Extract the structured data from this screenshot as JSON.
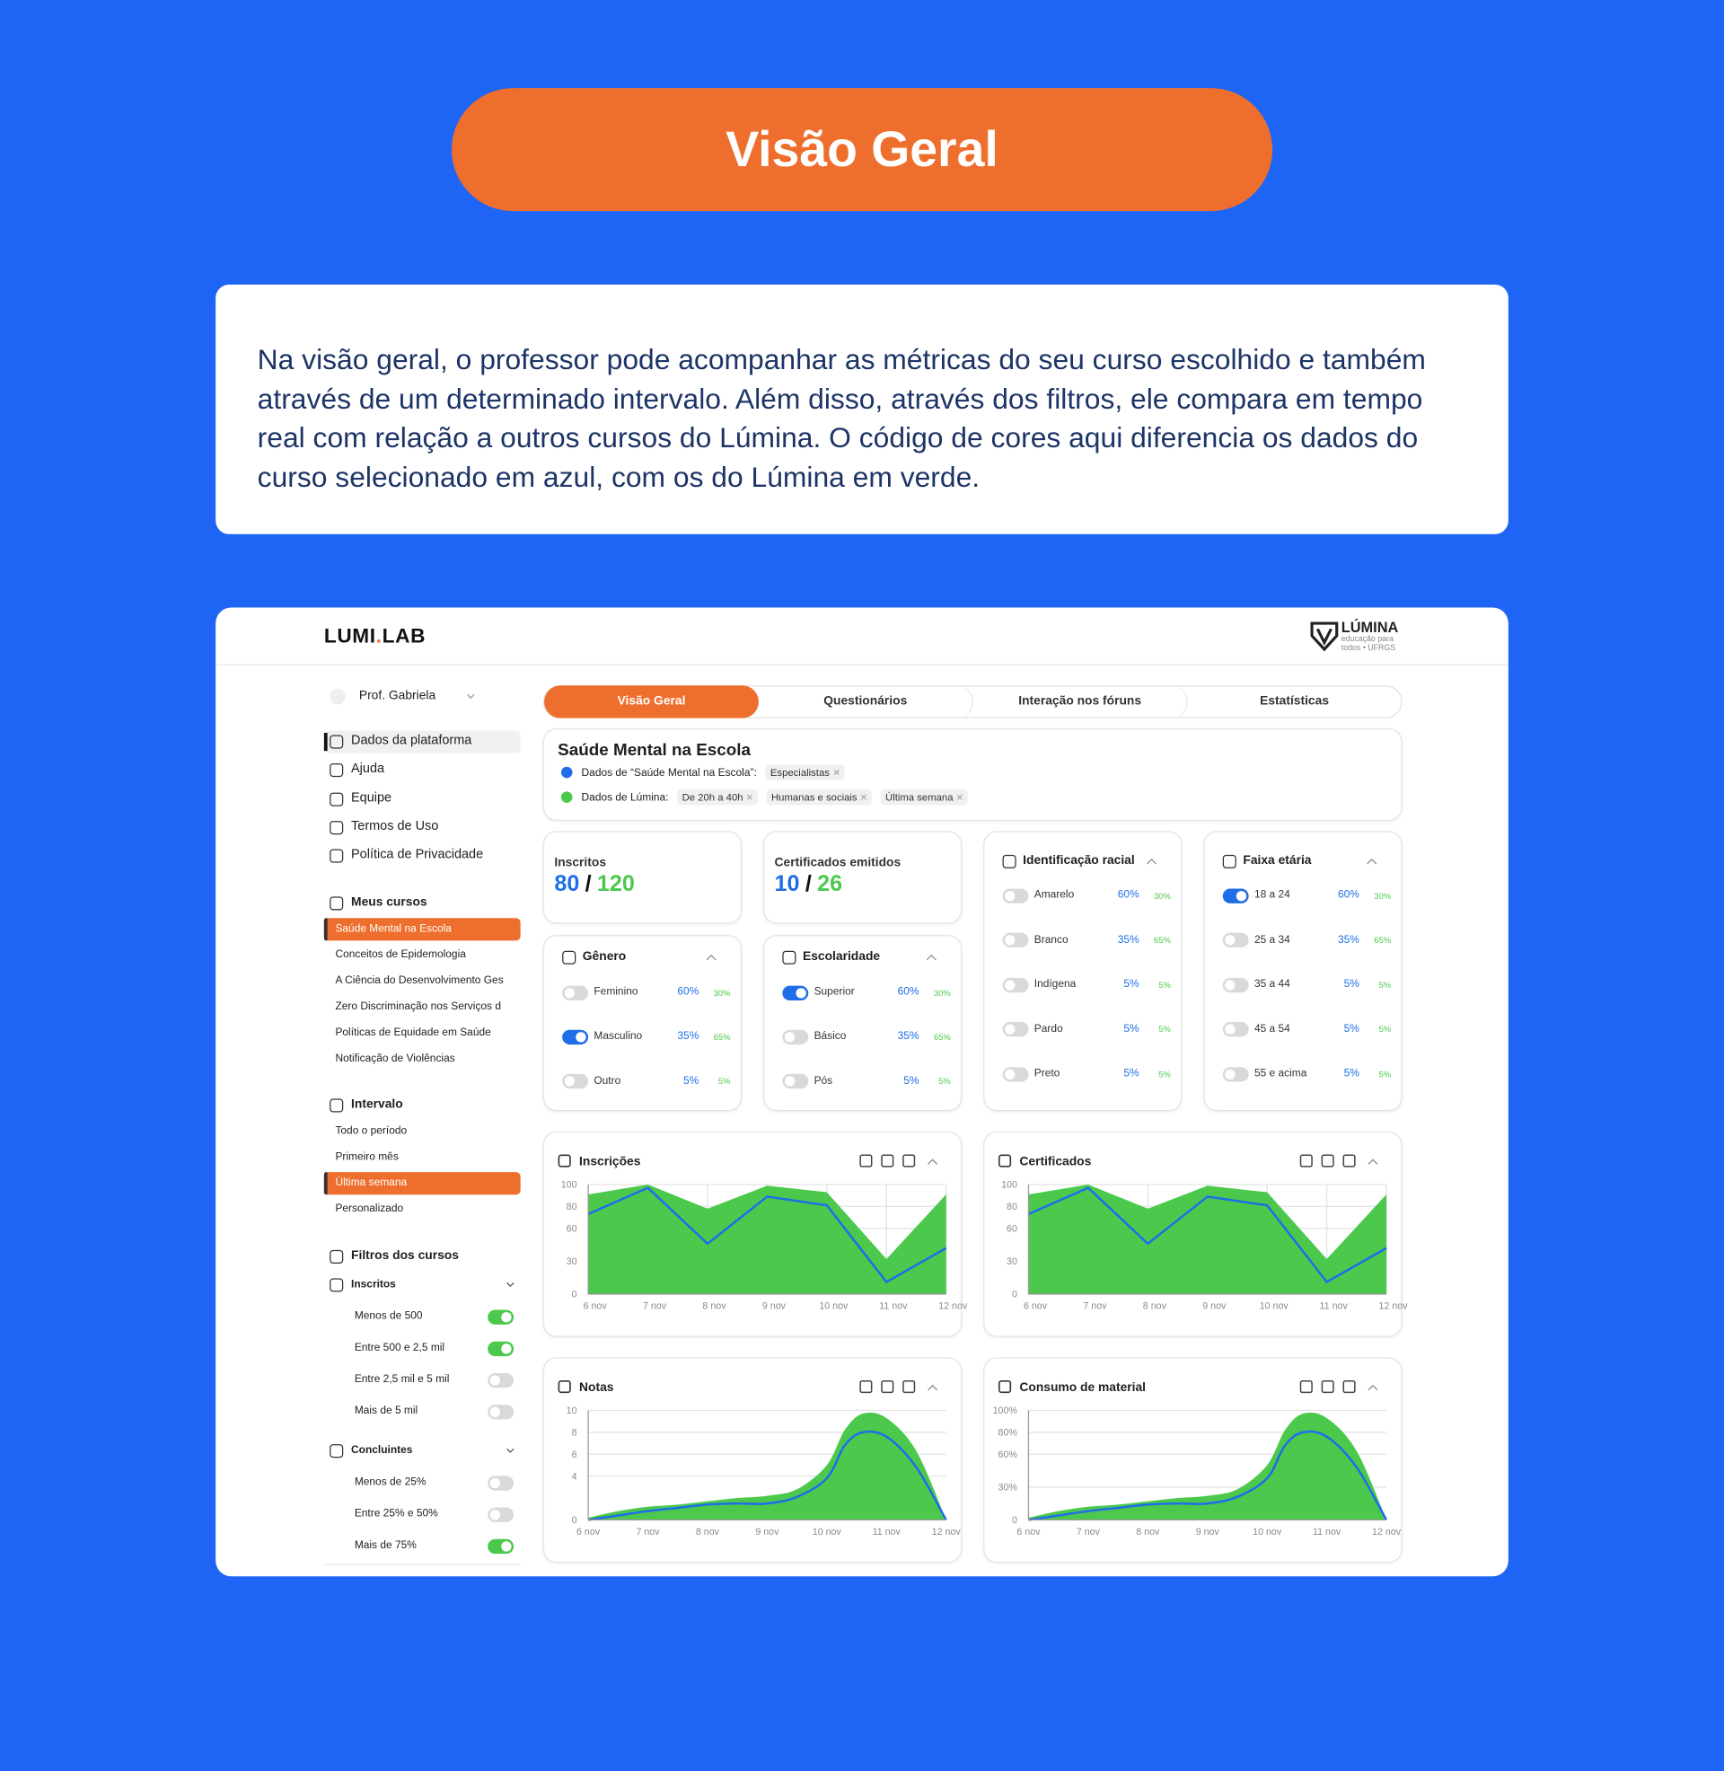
{
  "header": {
    "title": "Visão Geral"
  },
  "intro": {
    "text": "Na visão geral, o professor pode acompanhar as métricas do seu curso escolhido e também através de um determinado intervalo. Além disso, através dos filtros, ele compara em tempo real com relação a outros cursos do Lúmina. O código de cores aqui diferencia os dados do curso selecionado em azul, com os do Lúmina em verde."
  },
  "app": {
    "logo": {
      "left": "LUMI",
      "dot": ".",
      "right": "LAB"
    },
    "partner": {
      "name": "LÚMINA",
      "tagline": [
        "educação para",
        "todos • UFRGS"
      ]
    },
    "user": "Prof. Gabriela",
    "menu": {
      "items": [
        "Dados da plataforma",
        "Ajuda",
        "Equipe",
        "Termos de Uso",
        "Política de Privacidade"
      ],
      "active": 0
    },
    "courses": {
      "title": "Meus cursos",
      "items": [
        "Saúde Mental na Escola",
        "Conceitos de Epidemologia",
        "A Ciência do Desenvolvimento Ges",
        "Zero Discriminação nos Serviços d",
        "Políticas de Equidade em Saúde",
        "Notificação de Violências"
      ],
      "selected": 0
    },
    "interval": {
      "title": "Intervalo",
      "items": [
        "Todo o período",
        "Primeiro mês",
        "Última semana",
        "Personalizado"
      ],
      "selected": 2
    },
    "filters": {
      "title": "Filtros dos cursos",
      "groups": [
        {
          "title": "Inscritos",
          "options": [
            {
              "label": "Menos de 500",
              "on": true
            },
            {
              "label": "Entre 500 e 2,5 mil",
              "on": true
            },
            {
              "label": "Entre 2,5 mil e 5 mil",
              "on": false
            },
            {
              "label": "Mais de 5 mil",
              "on": false
            }
          ]
        },
        {
          "title": "Concluintes",
          "options": [
            {
              "label": "Menos de 25%",
              "on": false
            },
            {
              "label": "Entre 25% e 50%",
              "on": false
            },
            {
              "label": "Mais de 75%",
              "on": true
            }
          ]
        }
      ]
    },
    "tabs": {
      "items": [
        "Visão Geral",
        "Questionários",
        "Interação nos fóruns",
        "Estatísticas"
      ],
      "active": 0
    },
    "course_panel": {
      "title": "Saúde Mental na Escola",
      "course_label": "Dados de “Saúde Mental na Escola”:",
      "course_tags": [
        "Especialistas"
      ],
      "platform_label": "Dados de Lúmina:",
      "platform_tags": [
        "De 20h a 40h",
        "Humanas e sociais",
        "Última semana"
      ]
    },
    "kpis": [
      {
        "title": "Inscritos",
        "course": 80,
        "separator": "/",
        "platform": 120
      },
      {
        "title": "Certificados emitidos",
        "course": 10,
        "separator": "/",
        "platform": 26
      }
    ],
    "breakdowns": [
      {
        "title": "Gênero",
        "rows": [
          {
            "label": "Feminino",
            "on": false,
            "course": "60%",
            "platform": "30%"
          },
          {
            "label": "Masculino",
            "on": true,
            "course": "35%",
            "platform": "65%"
          },
          {
            "label": "Outro",
            "on": false,
            "course": "5%",
            "platform": "5%"
          }
        ]
      },
      {
        "title": "Escolaridade",
        "rows": [
          {
            "label": "Superior",
            "on": true,
            "course": "60%",
            "platform": "30%"
          },
          {
            "label": "Básico",
            "on": false,
            "course": "35%",
            "platform": "65%"
          },
          {
            "label": "Pós",
            "on": false,
            "course": "5%",
            "platform": "5%"
          }
        ]
      },
      {
        "title": "Identificação racial",
        "rows": [
          {
            "label": "Amarelo",
            "on": false,
            "course": "60%",
            "platform": "30%"
          },
          {
            "label": "Branco",
            "on": false,
            "course": "35%",
            "platform": "65%"
          },
          {
            "label": "Indígena",
            "on": false,
            "course": "5%",
            "platform": "5%"
          },
          {
            "label": "Pardo",
            "on": false,
            "course": "5%",
            "platform": "5%"
          },
          {
            "label": "Preto",
            "on": false,
            "course": "5%",
            "platform": "5%"
          }
        ]
      },
      {
        "title": "Faixa etária",
        "rows": [
          {
            "label": "18 a 24",
            "on": true,
            "course": "60%",
            "platform": "30%"
          },
          {
            "label": "25 a 34",
            "on": false,
            "course": "35%",
            "platform": "65%"
          },
          {
            "label": "35 a 44",
            "on": false,
            "course": "5%",
            "platform": "5%"
          },
          {
            "label": "45 a 54",
            "on": false,
            "course": "5%",
            "platform": "5%"
          },
          {
            "label": "55 e acima",
            "on": false,
            "course": "5%",
            "platform": "5%"
          }
        ]
      }
    ]
  },
  "chart_data": [
    {
      "type": "area",
      "title": "Inscrições",
      "categories": [
        "6 nov",
        "7 nov",
        "8 nov",
        "9 nov",
        "10 nov",
        "11 nov",
        "12 nov"
      ],
      "ylim": [
        0,
        100
      ],
      "yticks": [
        0,
        30,
        60,
        80,
        100
      ],
      "grid": true,
      "xgrid": true,
      "series": [
        {
          "color": "#4cc94c",
          "fill": true,
          "values": [
            91,
            100,
            78,
            99,
            93,
            32,
            91
          ]
        },
        {
          "color": "#1f6ee8",
          "fill": false,
          "values": [
            73,
            97,
            46,
            89,
            81,
            11,
            42
          ]
        }
      ]
    },
    {
      "type": "area",
      "title": "Certificados",
      "categories": [
        "6 nov",
        "7 nov",
        "8 nov",
        "9 nov",
        "10 nov",
        "11 nov",
        "12 nov"
      ],
      "ylim": [
        0,
        100
      ],
      "yticks": [
        0,
        30,
        60,
        80,
        100
      ],
      "grid": true,
      "xgrid": true,
      "series": [
        {
          "color": "#4cc94c",
          "fill": true,
          "values": [
            91,
            100,
            78,
            99,
            93,
            32,
            91
          ]
        },
        {
          "color": "#1f6ee8",
          "fill": false,
          "values": [
            73,
            97,
            46,
            89,
            81,
            11,
            42
          ]
        }
      ]
    },
    {
      "type": "area",
      "title": "Notas",
      "smooth": true,
      "x": [
        6,
        6.5,
        7,
        7.5,
        8,
        8.5,
        9,
        9.5,
        10,
        10.3,
        10.6,
        11,
        11.5,
        12
      ],
      "xlim": [
        6,
        12
      ],
      "xticks": [
        {
          "value": 6,
          "label": "6 nov"
        },
        {
          "value": 7,
          "label": "7 nov"
        },
        {
          "value": 8,
          "label": "8 nov"
        },
        {
          "value": 9,
          "label": "9 nov"
        },
        {
          "value": 10,
          "label": "10 nov"
        },
        {
          "value": 11,
          "label": "11 nov"
        },
        {
          "value": 12,
          "label": "12 nov"
        }
      ],
      "ylim": [
        0,
        10
      ],
      "yticks": [
        0,
        4,
        6,
        8,
        10
      ],
      "grid": true,
      "xgrid": false,
      "series": [
        {
          "color": "#4cc94c",
          "fill": true,
          "values": [
            0.2,
            0.8,
            1.2,
            1.4,
            1.7,
            2.0,
            2.2,
            2.8,
            5.0,
            8.2,
            9.7,
            9.3,
            6.3,
            0
          ]
        },
        {
          "color": "#1f6ee8",
          "fill": false,
          "values": [
            0,
            0.4,
            0.8,
            1.1,
            1.4,
            1.5,
            1.5,
            2.1,
            3.8,
            6.8,
            8.0,
            7.6,
            4.8,
            0
          ]
        }
      ]
    },
    {
      "type": "area",
      "title": "Consumo de material",
      "smooth": true,
      "x": [
        6,
        6.5,
        7,
        7.5,
        8,
        8.5,
        9,
        9.5,
        10,
        10.3,
        10.6,
        11,
        11.5,
        12
      ],
      "xlim": [
        6,
        12
      ],
      "xticks": [
        {
          "value": 6,
          "label": "6 nov"
        },
        {
          "value": 7,
          "label": "7 nov"
        },
        {
          "value": 8,
          "label": "8 nov"
        },
        {
          "value": 9,
          "label": "9 nov"
        },
        {
          "value": 10,
          "label": "10 nov"
        },
        {
          "value": 11,
          "label": "11 nov"
        },
        {
          "value": 12,
          "label": "12 nov"
        }
      ],
      "ylim": [
        0,
        100
      ],
      "yticks": [
        0,
        {
          "value": 30,
          "label": "30%"
        },
        {
          "value": 60,
          "label": "60%"
        },
        {
          "value": 80,
          "label": "80%"
        },
        {
          "value": 100,
          "label": "100%"
        }
      ],
      "grid": true,
      "xgrid": false,
      "series": [
        {
          "color": "#4cc94c",
          "fill": true,
          "values": [
            2,
            8,
            12,
            14,
            17,
            20,
            22,
            28,
            50,
            82,
            97,
            93,
            63,
            0
          ]
        },
        {
          "color": "#1f6ee8",
          "fill": false,
          "values": [
            0,
            4,
            8,
            11,
            14,
            15,
            15,
            21,
            38,
            68,
            80,
            76,
            48,
            0
          ]
        }
      ]
    }
  ]
}
